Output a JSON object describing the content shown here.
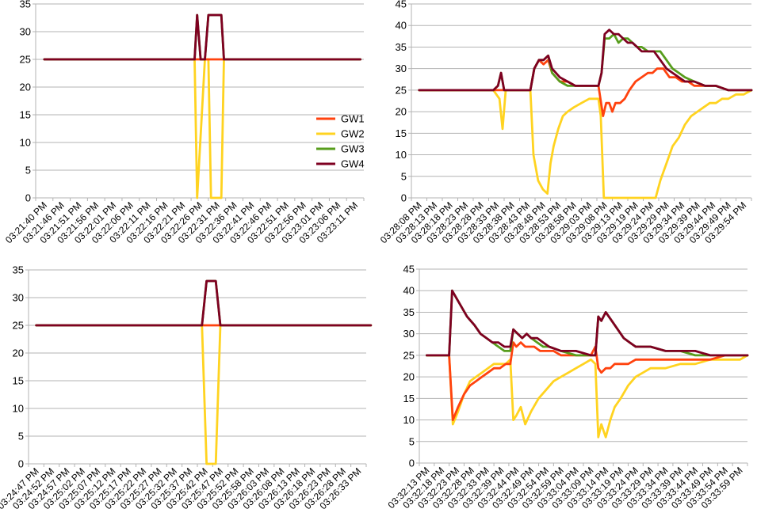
{
  "colors": {
    "GW1": "#ff420e",
    "GW2": "#ffd320",
    "GW3": "#579d1c",
    "GW4": "#7e0021",
    "axis": "#b3b3b3",
    "grid": "#b3b3b3"
  },
  "chart_data": [
    {
      "type": "line",
      "legend": {
        "placement": "right",
        "entries": [
          "GW1",
          "GW2",
          "GW3",
          "GW4"
        ]
      },
      "ylim": [
        0,
        35
      ],
      "yticks": [
        0,
        5,
        10,
        15,
        20,
        25,
        30,
        35
      ],
      "grid": {
        "horizontal": true
      },
      "x_tick_labels": [
        "03:21:40 PM",
        "03:21:46 PM",
        "03:21:51 PM",
        "03:21:56 PM",
        "03:22:01 PM",
        "03:22:06 PM",
        "03:22:11 PM",
        "03:22:16 PM",
        "03:22:21 PM",
        "03:22:26 PM",
        "03:22:31 PM",
        "03:22:36 PM",
        "03:22:41 PM",
        "03:22:46 PM",
        "03:22:51 PM",
        "03:22:56 PM",
        "03:23:01 PM",
        "03:23:06 PM",
        "03:23:11 PM"
      ],
      "series": [
        {
          "name": "GW1",
          "x": [
            0,
            8.7,
            8.85,
            9.3,
            9.5,
            9.65,
            18.3
          ],
          "y": [
            25,
            25,
            25,
            25,
            25,
            25,
            25
          ]
        },
        {
          "name": "GW2",
          "x": [
            0,
            8.7,
            8.85,
            9.3,
            9.5,
            9.65,
            9.8,
            10.25,
            10.4,
            18.3
          ],
          "y": [
            25,
            25,
            0,
            25,
            25,
            0,
            0,
            0,
            25,
            25
          ]
        },
        {
          "name": "GW3",
          "x": [
            0,
            8.7,
            8.85,
            9.05,
            9.3,
            9.5,
            9.65,
            9.8,
            10.25,
            10.4,
            18.3
          ],
          "y": [
            25,
            25,
            33,
            25,
            25,
            33,
            33,
            33,
            33,
            25,
            25
          ]
        },
        {
          "name": "GW4",
          "x": [
            0,
            8.7,
            8.85,
            9.05,
            9.3,
            9.5,
            9.65,
            9.8,
            10.25,
            10.4,
            18.3
          ],
          "y": [
            25,
            25,
            33,
            25,
            25,
            33,
            33,
            33,
            33,
            25,
            25
          ]
        }
      ]
    },
    {
      "type": "line",
      "ylim": [
        0,
        45
      ],
      "yticks": [
        0,
        5,
        10,
        15,
        20,
        25,
        30,
        35,
        40,
        45
      ],
      "grid": {
        "horizontal": true
      },
      "x_tick_labels": [
        "03:28:08 PM",
        "03:28:13 PM",
        "03:28:18 PM",
        "03:28:23 PM",
        "03:28:28 PM",
        "03:28:33 PM",
        "03:28:38 PM",
        "03:28:43 PM",
        "03:28:48 PM",
        "03:28:53 PM",
        "03:28:58 PM",
        "03:29:03 PM",
        "03:29:08 PM",
        "03:29:13 PM",
        "03:29:19 PM",
        "03:29:24 PM",
        "03:29:29 PM",
        "03:29:34 PM",
        "03:29:39 PM",
        "03:29:44 PM",
        "03:29:49 PM",
        "03:29:54 PM"
      ],
      "series": [
        {
          "name": "GW1",
          "x": [
            0,
            4.8,
            7.2,
            7.45,
            7.75,
            8.05,
            8.35,
            8.6,
            9.1,
            9.6,
            10.1,
            10.6,
            11.6,
            11.9,
            12.1,
            12.3,
            12.5,
            12.7,
            13.0,
            13.3,
            13.6,
            14.0,
            14.4,
            14.8,
            15.1,
            15.4,
            15.8,
            16.2,
            16.6,
            17.0,
            17.4,
            17.8,
            18.5,
            19.2,
            20.0,
            21.5
          ],
          "y": [
            25,
            25,
            25,
            30,
            32,
            31,
            32,
            29,
            27,
            27,
            26,
            26,
            26,
            19,
            22,
            22,
            20,
            22,
            22,
            23,
            25,
            27,
            28,
            29,
            29,
            30,
            30,
            28,
            28,
            27,
            27,
            26,
            26,
            26,
            25,
            25
          ]
        },
        {
          "name": "GW2",
          "x": [
            0,
            4.8,
            5.2,
            5.4,
            5.6,
            7.2,
            7.4,
            7.7,
            8.0,
            8.3,
            8.5,
            8.7,
            9.0,
            9.3,
            9.6,
            10.0,
            10.5,
            11.0,
            11.6,
            11.75,
            11.95,
            15.3,
            15.6,
            16.0,
            16.4,
            16.8,
            17.2,
            17.6,
            18.0,
            18.4,
            18.8,
            19.2,
            19.6,
            20.0,
            20.5,
            21.0,
            21.5
          ],
          "y": [
            25,
            25,
            23,
            16,
            25,
            25,
            10,
            4,
            2,
            1,
            8,
            12,
            16,
            19,
            20,
            21,
            22,
            23,
            23,
            19,
            0,
            0,
            4,
            8,
            12,
            14,
            17,
            19,
            20,
            21,
            22,
            22,
            23,
            23,
            24,
            24,
            25
          ]
        },
        {
          "name": "GW3",
          "x": [
            0,
            4.8,
            5.1,
            5.3,
            5.5,
            7.2,
            7.45,
            7.75,
            8.05,
            8.35,
            8.6,
            9.1,
            9.6,
            10.1,
            10.6,
            11.6,
            11.8,
            12.0,
            12.3,
            12.6,
            12.9,
            13.2,
            13.5,
            13.8,
            14.1,
            14.4,
            14.8,
            15.2,
            15.6,
            16.0,
            16.4,
            16.8,
            17.2,
            17.8,
            18.5,
            19.2,
            20.0,
            21.5
          ],
          "y": [
            25,
            25,
            26,
            29,
            25,
            25,
            30,
            32,
            32,
            33,
            29,
            27,
            26,
            26,
            26,
            26,
            29,
            37,
            37,
            38,
            36,
            37,
            37,
            36,
            35,
            35,
            34,
            34,
            34,
            32,
            30,
            29,
            28,
            27,
            26,
            26,
            25,
            25
          ]
        },
        {
          "name": "GW4",
          "x": [
            0,
            4.8,
            5.1,
            5.3,
            5.5,
            7.2,
            7.45,
            7.75,
            8.05,
            8.35,
            8.6,
            9.1,
            9.6,
            10.1,
            10.6,
            11.6,
            11.8,
            12.0,
            12.3,
            12.6,
            12.9,
            13.2,
            13.5,
            13.8,
            14.1,
            14.4,
            14.8,
            15.2,
            15.6,
            16.0,
            16.4,
            16.8,
            17.2,
            17.8,
            18.5,
            19.2,
            20.0,
            21.5
          ],
          "y": [
            25,
            25,
            26,
            29,
            25,
            25,
            30,
            32,
            32,
            33,
            30,
            28,
            27,
            26,
            26,
            26,
            29,
            38,
            39,
            38,
            38,
            37,
            36,
            36,
            35,
            34,
            34,
            34,
            32,
            30,
            29,
            28,
            27,
            27,
            26,
            26,
            25,
            25
          ]
        }
      ]
    },
    {
      "type": "line",
      "ylim": [
        0,
        35
      ],
      "yticks": [
        0,
        5,
        10,
        15,
        20,
        25,
        30,
        35
      ],
      "grid": {
        "horizontal": true
      },
      "x_tick_labels": [
        "03:24:47 PM",
        "03:24:52 PM",
        "03:24:57 PM",
        "03:25:02 PM",
        "03:25:07 PM",
        "03:25:12 PM",
        "03:25:17 PM",
        "03:25:22 PM",
        "03:25:27 PM",
        "03:25:32 PM",
        "03:25:37 PM",
        "03:25:42 PM",
        "03:25:47 PM",
        "03:25:52 PM",
        "03:25:58 PM",
        "03:26:03 PM",
        "03:26:08 PM",
        "03:26:13 PM",
        "03:26:18 PM",
        "03:26:23 PM",
        "03:26:28 PM",
        "03:26:33 PM"
      ],
      "series": [
        {
          "name": "GW1",
          "x": [
            0,
            21.8
          ],
          "y": [
            25,
            25
          ]
        },
        {
          "name": "GW2",
          "x": [
            0,
            10.8,
            11.1,
            11.7,
            12.0,
            21.8
          ],
          "y": [
            25,
            25,
            0,
            0,
            25,
            25
          ]
        },
        {
          "name": "GW3",
          "x": [
            0,
            10.8,
            11.1,
            11.7,
            12.0,
            21.8
          ],
          "y": [
            25,
            25,
            33,
            33,
            25,
            25
          ]
        },
        {
          "name": "GW4",
          "x": [
            0,
            10.8,
            11.1,
            11.7,
            12.0,
            21.8
          ],
          "y": [
            25,
            25,
            33,
            33,
            25,
            25
          ]
        }
      ]
    },
    {
      "type": "line",
      "ylim": [
        0,
        45
      ],
      "yticks": [
        0,
        5,
        10,
        15,
        20,
        25,
        30,
        35,
        40,
        45
      ],
      "grid": {
        "horizontal": true
      },
      "x_tick_labels": [
        "03:32:13 PM",
        "03:32:18 PM",
        "03:32:23 PM",
        "03:32:28 PM",
        "03:32:33 PM",
        "03:32:39 PM",
        "03:32:44 PM",
        "03:32:49 PM",
        "03:32:54 PM",
        "03:32:59 PM",
        "03:33:04 PM",
        "03:33:09 PM",
        "03:33:14 PM",
        "03:33:19 PM",
        "03:33:24 PM",
        "03:33:29 PM",
        "03:33:34 PM",
        "03:33:39 PM",
        "03:33:44 PM",
        "03:33:49 PM",
        "03:33:54 PM",
        "03:33:59 PM"
      ],
      "series": [
        {
          "name": "GW1",
          "x": [
            0,
            1.5,
            1.75,
            2.1,
            2.5,
            2.9,
            3.3,
            3.7,
            4.1,
            4.5,
            4.9,
            5.3,
            5.6,
            5.8,
            6.0,
            6.3,
            6.6,
            6.9,
            7.2,
            7.6,
            8.0,
            8.5,
            9.0,
            10.0,
            11.0,
            11.3,
            11.5,
            11.7,
            12.0,
            12.3,
            12.6,
            13.0,
            13.5,
            14.0,
            15.0,
            16.0,
            17.0,
            18.0,
            19.0,
            20.0,
            21.5
          ],
          "y": [
            25,
            25,
            10,
            13,
            16,
            18,
            19,
            20,
            21,
            22,
            22,
            23,
            23,
            28,
            27,
            28,
            27,
            27,
            27,
            26,
            26,
            26,
            25,
            25,
            25,
            27,
            22,
            21,
            22,
            22,
            23,
            23,
            23,
            24,
            24,
            24,
            24,
            24,
            24,
            25,
            25
          ]
        },
        {
          "name": "GW2",
          "x": [
            0,
            1.5,
            1.75,
            2.1,
            2.5,
            2.9,
            3.3,
            3.7,
            4.1,
            4.5,
            4.9,
            5.3,
            5.6,
            5.8,
            6.0,
            6.3,
            6.6,
            7.0,
            7.5,
            8.0,
            8.5,
            9.0,
            9.5,
            10.0,
            10.5,
            11.0,
            11.3,
            11.5,
            11.7,
            12.0,
            12.3,
            12.6,
            13.0,
            13.5,
            14.0,
            14.5,
            15.0,
            16.0,
            17.0,
            18.0,
            19.0,
            20.0,
            21.0,
            21.5
          ],
          "y": [
            25,
            25,
            9,
            12,
            16,
            19,
            20,
            21,
            22,
            23,
            23,
            23,
            24,
            10,
            11,
            13,
            9,
            12,
            15,
            17,
            19,
            20,
            21,
            22,
            23,
            24,
            23,
            6,
            9,
            6,
            10,
            13,
            15,
            18,
            20,
            21,
            22,
            22,
            23,
            23,
            24,
            24,
            24,
            25
          ]
        },
        {
          "name": "GW3",
          "x": [
            0,
            1.5,
            1.7,
            2.2,
            2.7,
            3.2,
            3.6,
            4.0,
            4.4,
            4.8,
            5.2,
            5.6,
            5.8,
            6.1,
            6.4,
            6.7,
            7.0,
            7.4,
            7.8,
            8.2,
            9.0,
            10.0,
            11.0,
            11.3,
            11.5,
            11.7,
            12.0,
            12.4,
            12.8,
            13.2,
            13.6,
            14.0,
            15.0,
            16.0,
            17.0,
            18.0,
            19.0,
            20.0,
            21.5
          ],
          "y": [
            25,
            25,
            40,
            37,
            34,
            32,
            30,
            29,
            28,
            27,
            26,
            26,
            31,
            30,
            29,
            30,
            29,
            28,
            27,
            27,
            26,
            25,
            25,
            25,
            34,
            33,
            35,
            33,
            31,
            29,
            28,
            27,
            27,
            26,
            26,
            25,
            25,
            25,
            25
          ]
        },
        {
          "name": "GW4",
          "x": [
            0,
            1.5,
            1.7,
            2.2,
            2.7,
            3.2,
            3.6,
            4.0,
            4.4,
            4.8,
            5.2,
            5.6,
            5.8,
            6.1,
            6.4,
            6.7,
            7.0,
            7.4,
            7.8,
            8.2,
            9.0,
            10.0,
            11.0,
            11.3,
            11.5,
            11.7,
            12.0,
            12.4,
            12.8,
            13.2,
            13.6,
            14.0,
            15.0,
            16.0,
            17.0,
            18.0,
            19.0,
            20.0,
            21.5
          ],
          "y": [
            25,
            25,
            40,
            37,
            34,
            32,
            30,
            29,
            28,
            28,
            27,
            27,
            31,
            30,
            29,
            30,
            29,
            29,
            28,
            27,
            26,
            26,
            25,
            25,
            34,
            33,
            35,
            33,
            31,
            29,
            28,
            27,
            27,
            26,
            26,
            26,
            25,
            25,
            25
          ]
        }
      ]
    }
  ]
}
